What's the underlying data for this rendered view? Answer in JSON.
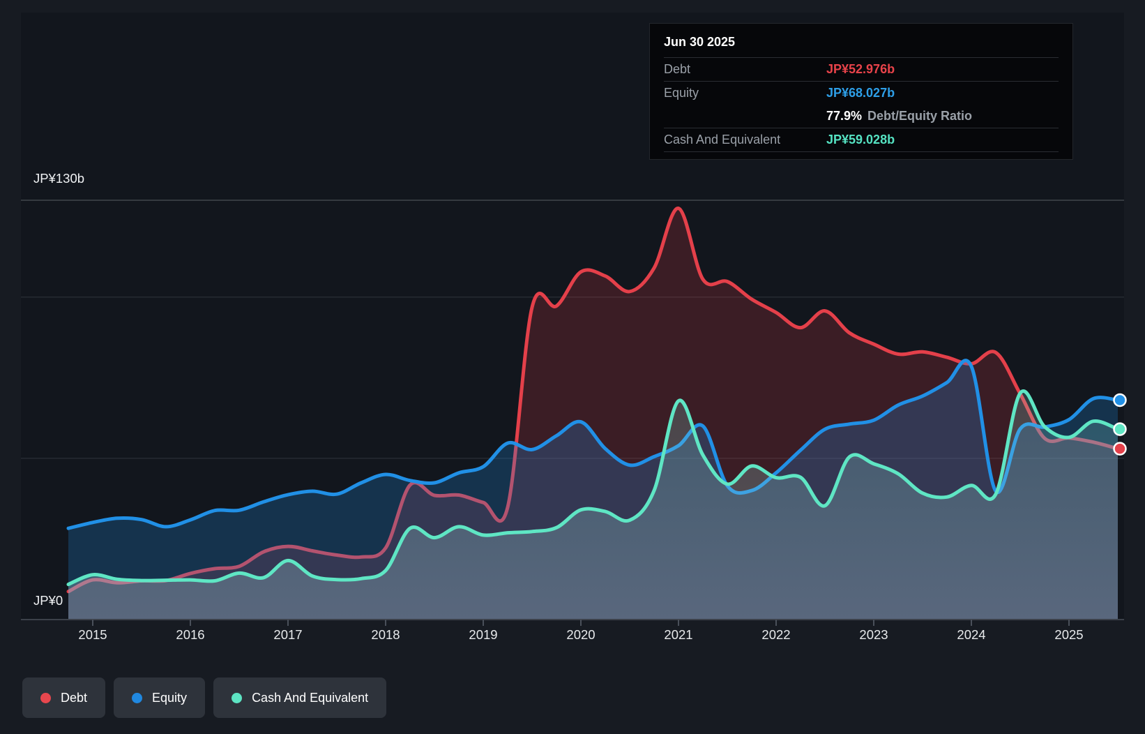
{
  "colors": {
    "page_bg": "#171b22",
    "plot_bg": "#12161d",
    "debt": "#e4404a",
    "equity": "#2190e6",
    "cash": "#5fe6c4",
    "debt_value_text": "#e8434a",
    "equity_value_text": "#2e9fe8",
    "cash_value_text": "#55e2c2",
    "axis_text": "#e8eaec",
    "grid_major": "#41464d",
    "grid_minor": "#262b32",
    "axis_line": "#3c414a"
  },
  "tooltip": {
    "date": "Jun 30 2025",
    "debt": {
      "label": "Debt",
      "value": "JP¥52.976b"
    },
    "equity": {
      "label": "Equity",
      "value": "JP¥68.027b"
    },
    "ratio": {
      "value": "77.9%",
      "label": "Debt/Equity Ratio"
    },
    "cash": {
      "label": "Cash And Equivalent",
      "value": "JP¥59.028b"
    }
  },
  "legend": {
    "items": [
      {
        "label": "Debt",
        "color": "#e8474e"
      },
      {
        "label": "Equity",
        "color": "#2088e0"
      },
      {
        "label": "Cash And Equivalent",
        "color": "#5de4c3"
      }
    ]
  },
  "chart_data": {
    "type": "area",
    "title": "Debt to Equity History with Cash And Equivalent",
    "unit": "JP¥ billions",
    "ylim": [
      0,
      130
    ],
    "y_gridline_values": [
      130,
      100,
      50,
      0
    ],
    "y_axis_labels": [
      {
        "value": 130,
        "text": "JP¥130b"
      },
      {
        "value": 0,
        "text": "JP¥0"
      }
    ],
    "x_tick_years": [
      2015,
      2016,
      2017,
      2018,
      2019,
      2020,
      2021,
      2022,
      2023,
      2024,
      2025
    ],
    "x_tick_labels": [
      "2015",
      "2016",
      "2017",
      "2018",
      "2019",
      "2020",
      "2021",
      "2022",
      "2023",
      "2024",
      "2025"
    ],
    "x": [
      2014.75,
      2015.0,
      2015.25,
      2015.5,
      2015.75,
      2016.0,
      2016.25,
      2016.5,
      2016.75,
      2017.0,
      2017.25,
      2017.5,
      2017.75,
      2018.0,
      2018.25,
      2018.5,
      2018.75,
      2019.0,
      2019.25,
      2019.5,
      2019.75,
      2020.0,
      2020.25,
      2020.5,
      2020.75,
      2021.0,
      2021.25,
      2021.5,
      2021.75,
      2022.0,
      2022.25,
      2022.5,
      2022.75,
      2023.0,
      2023.25,
      2023.5,
      2023.75,
      2024.0,
      2024.25,
      2024.5,
      2024.75,
      2025.0,
      2025.25,
      2025.5
    ],
    "series": [
      {
        "name": "Debt",
        "color": "#e4404a",
        "fill": "rgba(226,60,70,0.20)",
        "values": [
          8.7,
          12.3,
          11.4,
          12.0,
          12.1,
          14.3,
          15.8,
          16.5,
          21.0,
          22.7,
          21.3,
          20.0,
          19.4,
          22.2,
          41.7,
          38.5,
          38.6,
          36.3,
          34.8,
          96.8,
          97.2,
          107.8,
          106.5,
          101.7,
          109.0,
          127.5,
          105.5,
          104.8,
          99.3,
          95.2,
          90.5,
          95.7,
          88.9,
          85.4,
          82.3,
          83.0,
          81.3,
          79.3,
          82.8,
          70.0,
          56.2,
          56.3,
          55.0,
          52.976
        ]
      },
      {
        "name": "Equity",
        "color": "#2190e6",
        "fill": "rgba(33,140,222,0.25)",
        "values": [
          28.3,
          30.1,
          31.4,
          31.0,
          28.8,
          30.9,
          33.8,
          33.9,
          36.5,
          38.7,
          39.8,
          38.9,
          42.4,
          45.0,
          43.1,
          42.4,
          45.5,
          47.4,
          54.7,
          52.7,
          57.0,
          61.3,
          53.0,
          47.9,
          50.5,
          53.9,
          60.0,
          41.5,
          40.0,
          45.5,
          52.5,
          59.0,
          60.6,
          61.8,
          66.5,
          69.3,
          73.5,
          78.5,
          39.8,
          59.1,
          59.7,
          62.0,
          68.5,
          68.027
        ]
      },
      {
        "name": "Cash And Equivalent",
        "color": "#5fe6c4",
        "fill": "gradient:cash",
        "values": [
          10.9,
          13.9,
          12.5,
          12.1,
          12.2,
          12.3,
          12.0,
          14.4,
          13.0,
          18.3,
          13.5,
          12.4,
          12.7,
          15.2,
          28.3,
          25.4,
          28.8,
          26.2,
          26.9,
          27.3,
          28.5,
          34.0,
          33.5,
          30.8,
          40.0,
          67.8,
          51.0,
          42.0,
          47.6,
          44.0,
          44.1,
          35.3,
          50.4,
          48.3,
          45.2,
          39.2,
          38.0,
          41.6,
          38.9,
          70.2,
          59.8,
          56.5,
          61.5,
          59.028
        ]
      }
    ],
    "latest_point": {
      "date": "Jun 30 2025",
      "debt": 52.976,
      "equity": 68.027,
      "cash": 59.028,
      "debt_equity_ratio_pct": 77.9
    }
  }
}
